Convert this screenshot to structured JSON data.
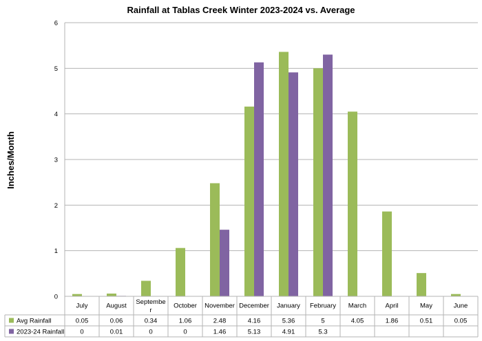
{
  "chart_data": {
    "type": "bar",
    "title": "Rainfall at Tablas Creek Winter 2023-2024 vs. Average",
    "ylabel": "Inches/Month",
    "xlabel": "",
    "ylim": [
      0,
      6
    ],
    "yticks": [
      "0",
      "1",
      "2",
      "3",
      "4",
      "5",
      "6"
    ],
    "grid": true,
    "legend": "data-table",
    "categories": [
      "July",
      "August",
      "Septembe\nr",
      "October",
      "November",
      "December",
      "January",
      "February",
      "March",
      "April",
      "May",
      "June"
    ],
    "series": [
      {
        "name": "Avg Rainfall",
        "color": "#9BBB59",
        "values": [
          0.05,
          0.06,
          0.34,
          1.06,
          2.48,
          4.16,
          5.36,
          5,
          4.05,
          1.86,
          0.51,
          0.05
        ],
        "labels": [
          "0.05",
          "0.06",
          "0.34",
          "1.06",
          "2.48",
          "4.16",
          "5.36",
          "5",
          "4.05",
          "1.86",
          "0.51",
          "0.05"
        ]
      },
      {
        "name": "2023-24 Rainfall",
        "color": "#8064A2",
        "values": [
          0,
          0.01,
          0,
          0,
          1.46,
          5.13,
          4.91,
          5.3,
          null,
          null,
          null,
          null
        ],
        "labels": [
          "0",
          "0.01",
          "0",
          "0",
          "1.46",
          "5.13",
          "4.91",
          "5.3",
          "",
          "",
          "",
          ""
        ]
      }
    ]
  }
}
